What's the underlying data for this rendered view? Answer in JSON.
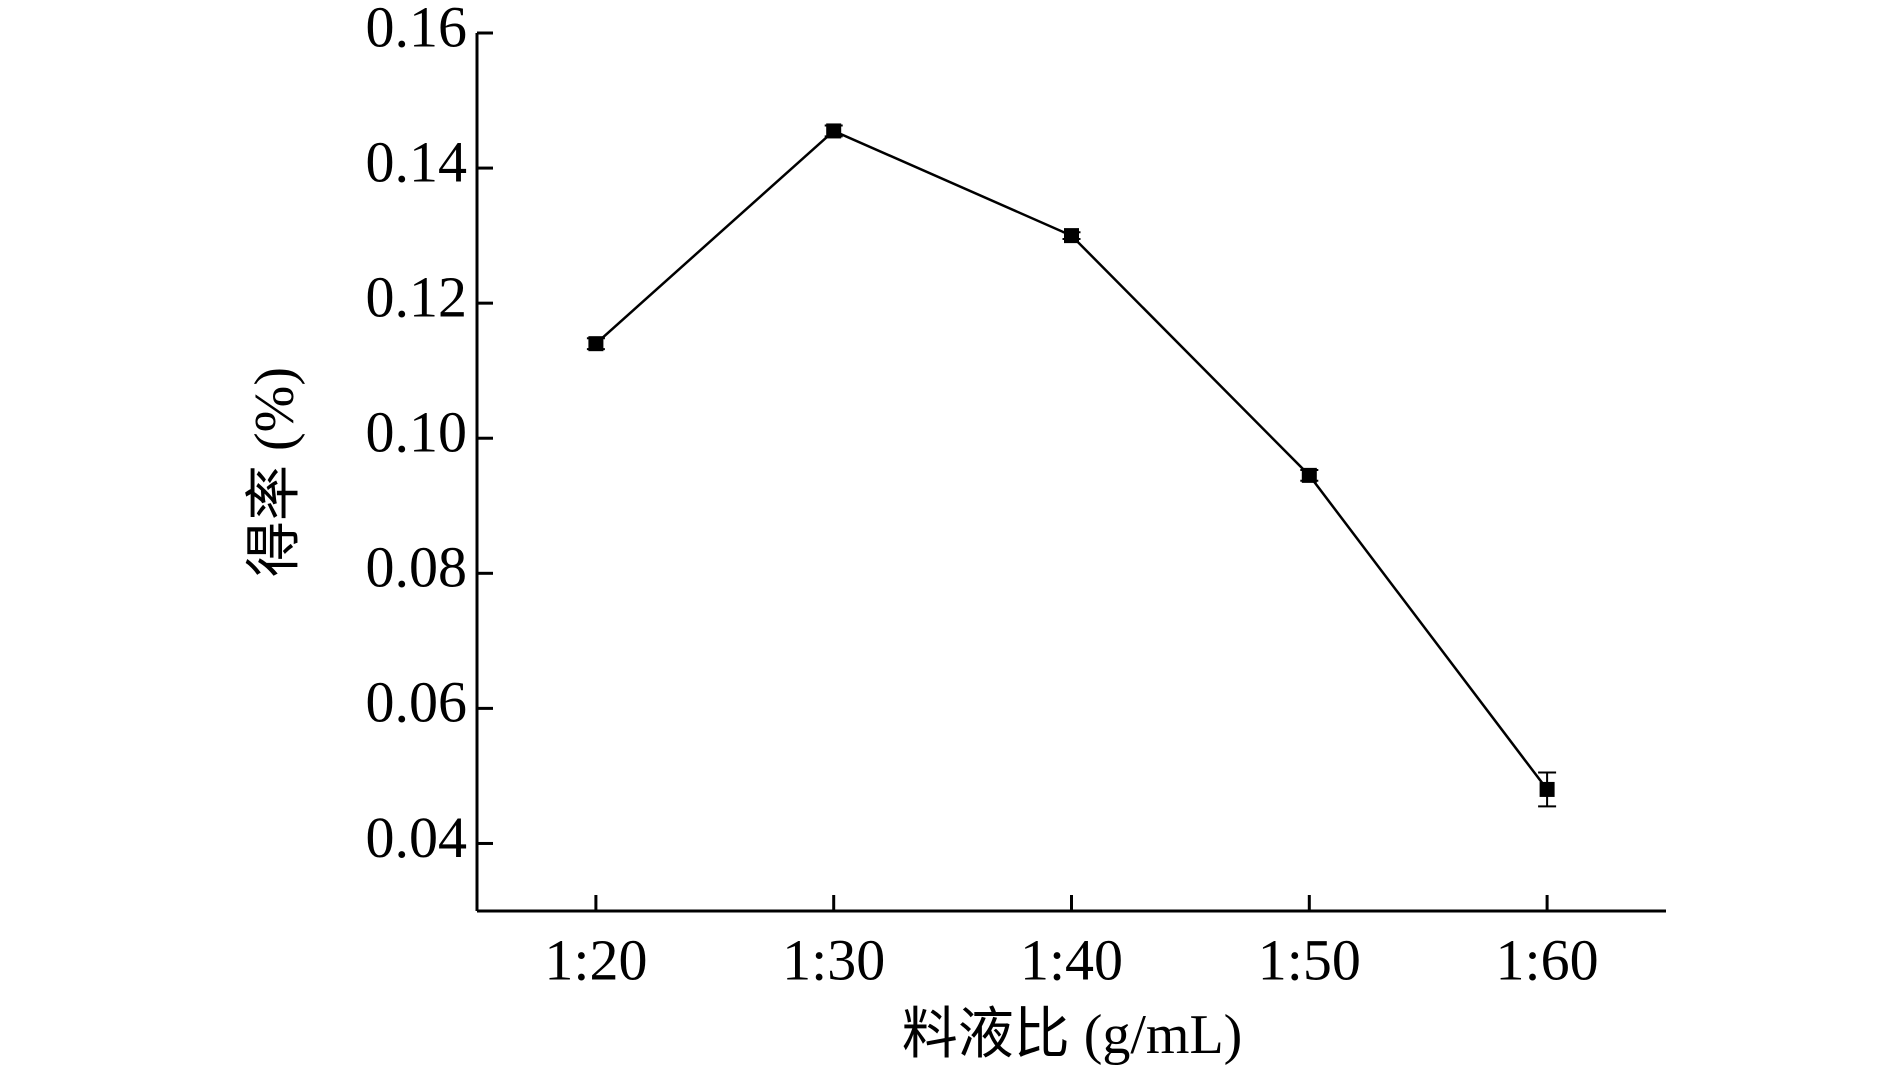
{
  "chart_data": {
    "type": "line",
    "xlabel": "料液比 (g/mL)",
    "ylabel": "得率 (%)",
    "categories": [
      "1:20",
      "1:30",
      "1:40",
      "1:50",
      "1:60"
    ],
    "series": [
      {
        "color": "#000000",
        "values": [
          0.114,
          0.1455,
          0.13,
          0.0945,
          0.048
        ],
        "errors": [
          0.0008,
          0.0008,
          0.0005,
          0.0008,
          0.0025
        ]
      }
    ],
    "ylim": [
      0.03,
      0.16
    ],
    "yticks": [
      0.04,
      0.06,
      0.08,
      {
        "value": 0.1,
        "label": "0.10"
      },
      0.12,
      0.14,
      0.16
    ],
    "grid": false
  }
}
